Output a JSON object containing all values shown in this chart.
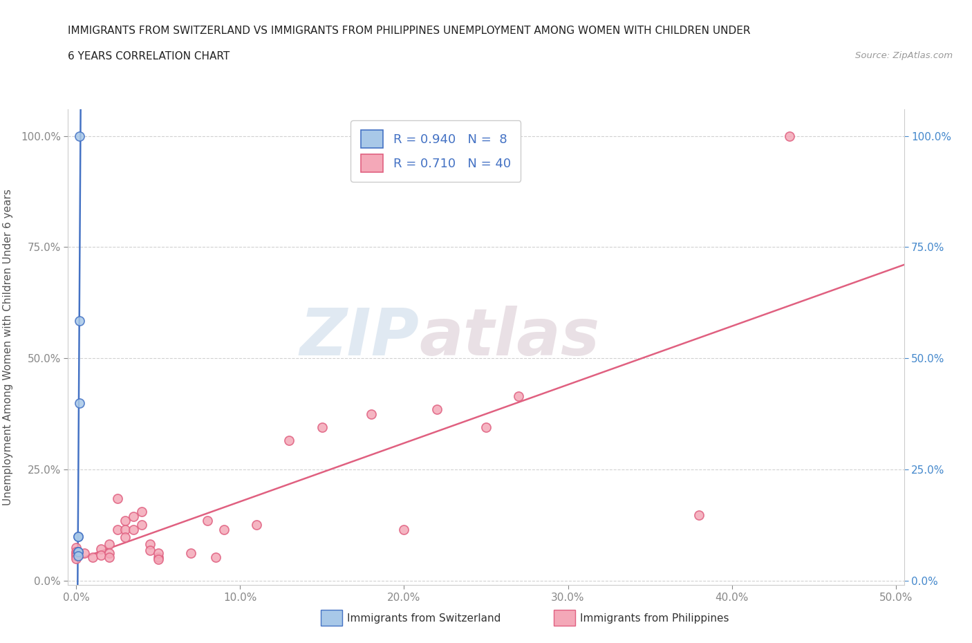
{
  "title_line1": "IMMIGRANTS FROM SWITZERLAND VS IMMIGRANTS FROM PHILIPPINES UNEMPLOYMENT AMONG WOMEN WITH CHILDREN UNDER",
  "title_line2": "6 YEARS CORRELATION CHART",
  "source": "Source: ZipAtlas.com",
  "ylabel": "Unemployment Among Women with Children Under 6 years",
  "legend_label1": "Immigrants from Switzerland",
  "legend_label2": "Immigrants from Philippines",
  "r1": 0.94,
  "n1": 8,
  "r2": 0.71,
  "n2": 40,
  "color_swiss": "#a8c8e8",
  "color_phil": "#f4a8b8",
  "line_color_swiss": "#4472c4",
  "line_color_phil": "#e06080",
  "swiss_x": [
    0.002,
    0.002,
    0.002,
    0.001,
    0.001,
    0.001,
    0.001,
    0.001
  ],
  "swiss_y": [
    1.0,
    0.585,
    0.4,
    0.1,
    0.1,
    0.065,
    0.065,
    0.055
  ],
  "phil_x": [
    0.0,
    0.0,
    0.0,
    0.0,
    0.0,
    0.005,
    0.01,
    0.015,
    0.015,
    0.02,
    0.02,
    0.02,
    0.025,
    0.025,
    0.03,
    0.03,
    0.03,
    0.035,
    0.035,
    0.04,
    0.04,
    0.045,
    0.045,
    0.05,
    0.05,
    0.05,
    0.07,
    0.08,
    0.085,
    0.09,
    0.11,
    0.13,
    0.15,
    0.18,
    0.2,
    0.22,
    0.25,
    0.27,
    0.38,
    0.435
  ],
  "phil_y": [
    0.075,
    0.065,
    0.06,
    0.055,
    0.05,
    0.062,
    0.052,
    0.072,
    0.058,
    0.082,
    0.062,
    0.052,
    0.185,
    0.115,
    0.135,
    0.115,
    0.097,
    0.145,
    0.115,
    0.155,
    0.125,
    0.082,
    0.068,
    0.052,
    0.062,
    0.048,
    0.062,
    0.135,
    0.052,
    0.115,
    0.125,
    0.315,
    0.345,
    0.375,
    0.115,
    0.385,
    0.345,
    0.415,
    0.148,
    1.0
  ],
  "xlim": [
    -0.005,
    0.505
  ],
  "ylim": [
    -0.01,
    1.06
  ],
  "xticks": [
    0.0,
    0.1,
    0.2,
    0.3,
    0.4,
    0.5
  ],
  "xtick_labels": [
    "0.0%",
    "10.0%",
    "20.0%",
    "30.0%",
    "40.0%",
    "50.0%"
  ],
  "yticks_left": [
    0.0,
    0.25,
    0.5,
    0.75,
    1.0
  ],
  "ytick_labels_left": [
    "0.0%",
    "25.0%",
    "50.0%",
    "75.0%",
    "100.0%"
  ],
  "yticks_right": [
    0.0,
    0.25,
    0.5,
    0.75,
    1.0
  ],
  "ytick_labels_right": [
    "0.0%",
    "25.0%",
    "50.0%",
    "75.0%",
    "100.0%"
  ],
  "watermark_zip": "ZIP",
  "watermark_atlas": "atlas",
  "background_color": "#ffffff",
  "grid_color": "#cccccc",
  "tick_color": "#888888",
  "right_tick_color": "#4488cc",
  "title_color": "#222222",
  "source_color": "#999999",
  "legend_text_color": "#4472c4"
}
